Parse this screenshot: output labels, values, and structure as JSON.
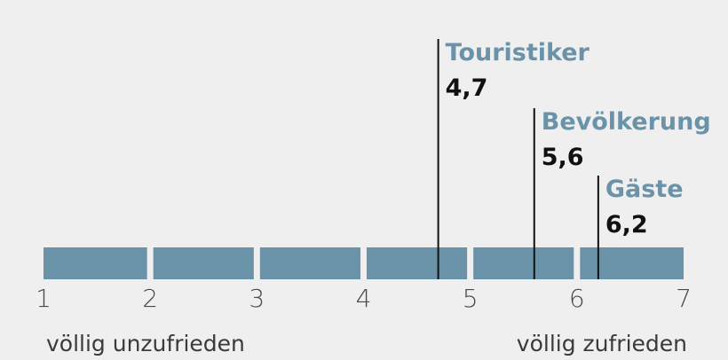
{
  "chart_data": {
    "type": "bar",
    "scale": {
      "min": 1,
      "max": 7,
      "ticks": [
        "1",
        "2",
        "3",
        "4",
        "5",
        "6",
        "7"
      ]
    },
    "label_min": "völlig unzufrieden",
    "label_max": "völlig zufrieden",
    "markers": [
      {
        "name": "Touristiker",
        "value": 4.7,
        "value_label": "4,7"
      },
      {
        "name": "Bevölkerung",
        "value": 5.6,
        "value_label": "5,6"
      },
      {
        "name": "Gäste",
        "value": 6.2,
        "value_label": "6,2"
      }
    ],
    "colors": {
      "bar": "#6a93a9",
      "marker_name": "#6a93a9",
      "line": "#111111",
      "background": "#efefef"
    }
  }
}
